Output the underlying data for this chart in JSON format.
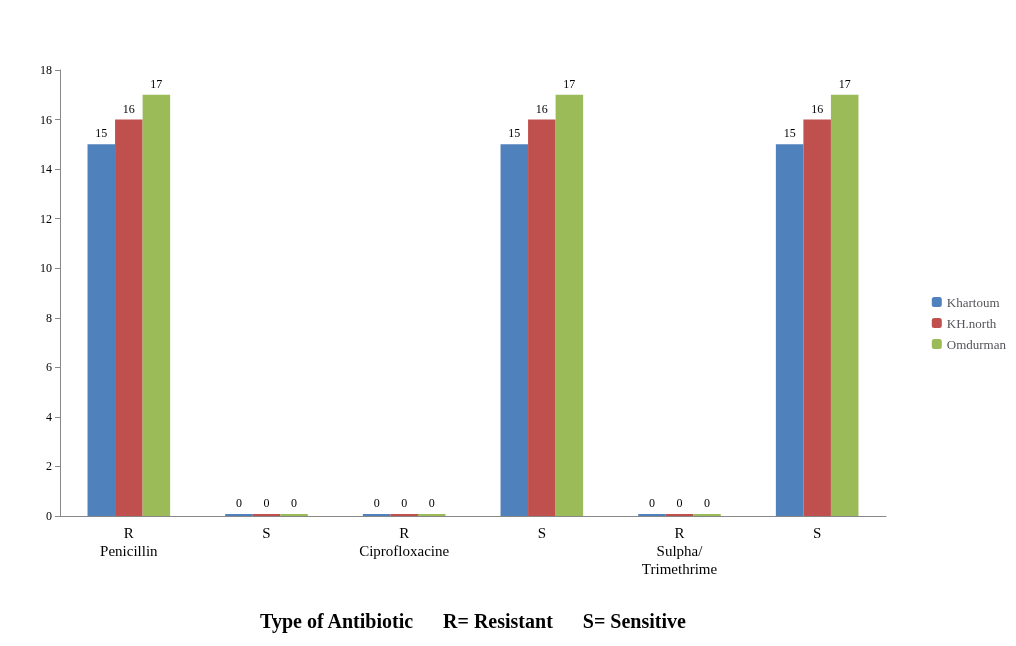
{
  "chart_data": {
    "type": "bar",
    "xlabel": "Type of Antibiotic      R= Resistant      S= Sensitive",
    "categories": [
      "R\nPenicillin",
      "S",
      "R\nCiprofloxacine",
      "S",
      "R\nSulpha/\nTrimethrime",
      "S"
    ],
    "series": [
      {
        "name": "Khartoum",
        "color": "#4f81bd",
        "values": [
          15,
          0,
          0,
          15,
          0,
          15
        ]
      },
      {
        "name": "KH.north",
        "color": "#c0504d",
        "values": [
          16,
          0,
          0,
          16,
          0,
          16
        ]
      },
      {
        "name": "Omdurman",
        "color": "#9bbb59",
        "values": [
          17,
          0,
          0,
          17,
          0,
          17
        ]
      }
    ],
    "ylim": [
      0,
      18
    ],
    "yticks": [
      0,
      2,
      4,
      6,
      8,
      10,
      12,
      14,
      16,
      18
    ],
    "data_labels": true,
    "grid": false,
    "legend": "right"
  }
}
